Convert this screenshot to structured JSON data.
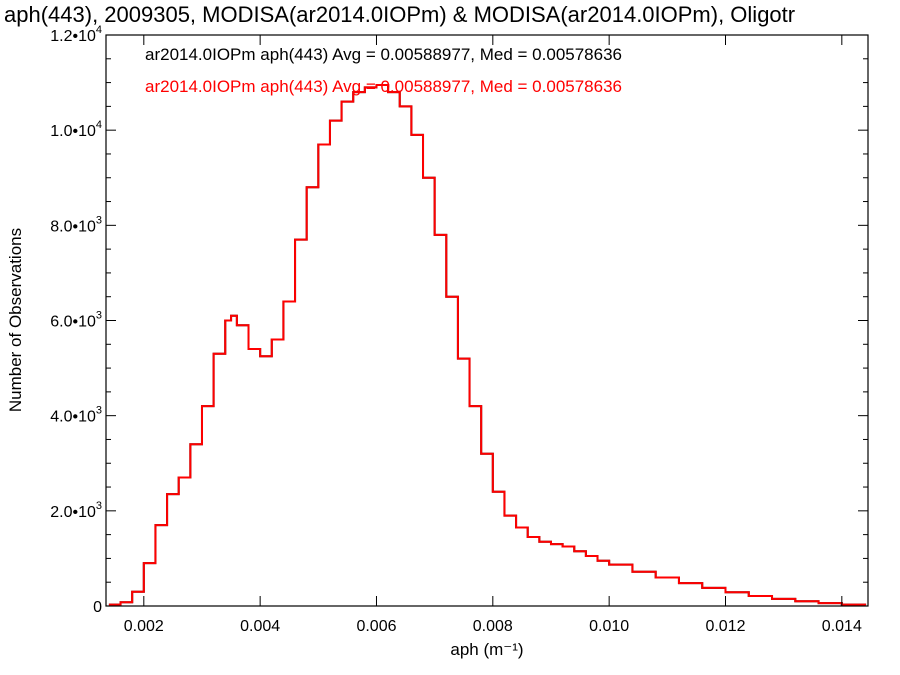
{
  "chart_data": {
    "type": "line",
    "title": "aph(443), 2009305, MODISA(ar2014.0IOPm) & MODISA(ar2014.0IOPm), Oligotr",
    "xlabel": "aph (m⁻¹)",
    "ylabel": "Number of Observations",
    "xlim": [
      0.00135,
      0.01445
    ],
    "ylim": [
      0,
      12000
    ],
    "x_ticks": [
      0.002,
      0.004,
      0.006,
      0.008,
      0.01,
      0.012,
      0.014
    ],
    "x_tick_labels": [
      "0.002",
      "0.004",
      "0.006",
      "0.008",
      "0.010",
      "0.012",
      "0.014"
    ],
    "y_tick_labels": [
      {
        "value": 0,
        "mant": "0",
        "exp": ""
      },
      {
        "value": 2000,
        "mant": "2.0•10",
        "exp": "3"
      },
      {
        "value": 4000,
        "mant": "4.0•10",
        "exp": "3"
      },
      {
        "value": 6000,
        "mant": "6.0•10",
        "exp": "3"
      },
      {
        "value": 8000,
        "mant": "8.0•10",
        "exp": "3"
      },
      {
        "value": 10000,
        "mant": "1.0•10",
        "exp": "4"
      },
      {
        "value": 12000,
        "mant": "1.2•10",
        "exp": "4"
      }
    ],
    "legend_placement": "top-left",
    "grid": false,
    "series": [
      {
        "name": "ar2014.0IOPm aph(443) Avg = 0.00588977, Med = 0.00578636",
        "color": "#000000",
        "x": [
          0.0014,
          0.0016,
          0.0018,
          0.002,
          0.0022,
          0.0024,
          0.0026,
          0.0028,
          0.003,
          0.0032,
          0.0034,
          0.0035,
          0.0036,
          0.0038,
          0.004,
          0.0042,
          0.0044,
          0.0046,
          0.0048,
          0.005,
          0.0052,
          0.0054,
          0.0056,
          0.0058,
          0.006,
          0.0062,
          0.0064,
          0.0066,
          0.0068,
          0.007,
          0.0072,
          0.0074,
          0.0076,
          0.0078,
          0.008,
          0.0082,
          0.0084,
          0.0086,
          0.0088,
          0.009,
          0.0092,
          0.0094,
          0.0096,
          0.0098,
          0.01,
          0.0104,
          0.0108,
          0.0112,
          0.0116,
          0.012,
          0.0124,
          0.0128,
          0.0132,
          0.0136,
          0.014,
          0.0144
        ],
        "values": [
          30,
          80,
          300,
          900,
          1700,
          2350,
          2700,
          3400,
          4200,
          5300,
          6000,
          6100,
          5900,
          5400,
          5250,
          5600,
          6400,
          7700,
          8800,
          9700,
          10200,
          10600,
          10800,
          10900,
          10950,
          10800,
          10500,
          9900,
          9000,
          7800,
          6500,
          5200,
          4200,
          3200,
          2400,
          1900,
          1650,
          1450,
          1350,
          1300,
          1250,
          1150,
          1050,
          950,
          870,
          720,
          600,
          480,
          380,
          290,
          210,
          150,
          100,
          60,
          30,
          15
        ]
      },
      {
        "name": "ar2014.0IOPm aph(443) Avg = 0.00588977, Med = 0.00578636",
        "color": "#ff0000",
        "x": [
          0.0014,
          0.0016,
          0.0018,
          0.002,
          0.0022,
          0.0024,
          0.0026,
          0.0028,
          0.003,
          0.0032,
          0.0034,
          0.0035,
          0.0036,
          0.0038,
          0.004,
          0.0042,
          0.0044,
          0.0046,
          0.0048,
          0.005,
          0.0052,
          0.0054,
          0.0056,
          0.0058,
          0.006,
          0.0062,
          0.0064,
          0.0066,
          0.0068,
          0.007,
          0.0072,
          0.0074,
          0.0076,
          0.0078,
          0.008,
          0.0082,
          0.0084,
          0.0086,
          0.0088,
          0.009,
          0.0092,
          0.0094,
          0.0096,
          0.0098,
          0.01,
          0.0104,
          0.0108,
          0.0112,
          0.0116,
          0.012,
          0.0124,
          0.0128,
          0.0132,
          0.0136,
          0.014,
          0.0144
        ],
        "values": [
          30,
          80,
          300,
          900,
          1700,
          2350,
          2700,
          3400,
          4200,
          5300,
          6000,
          6100,
          5900,
          5400,
          5250,
          5600,
          6400,
          7700,
          8800,
          9700,
          10200,
          10600,
          10800,
          10900,
          10950,
          10800,
          10500,
          9900,
          9000,
          7800,
          6500,
          5200,
          4200,
          3200,
          2400,
          1900,
          1650,
          1450,
          1350,
          1300,
          1250,
          1150,
          1050,
          950,
          870,
          720,
          600,
          480,
          380,
          290,
          210,
          150,
          100,
          60,
          30,
          15
        ]
      }
    ]
  }
}
